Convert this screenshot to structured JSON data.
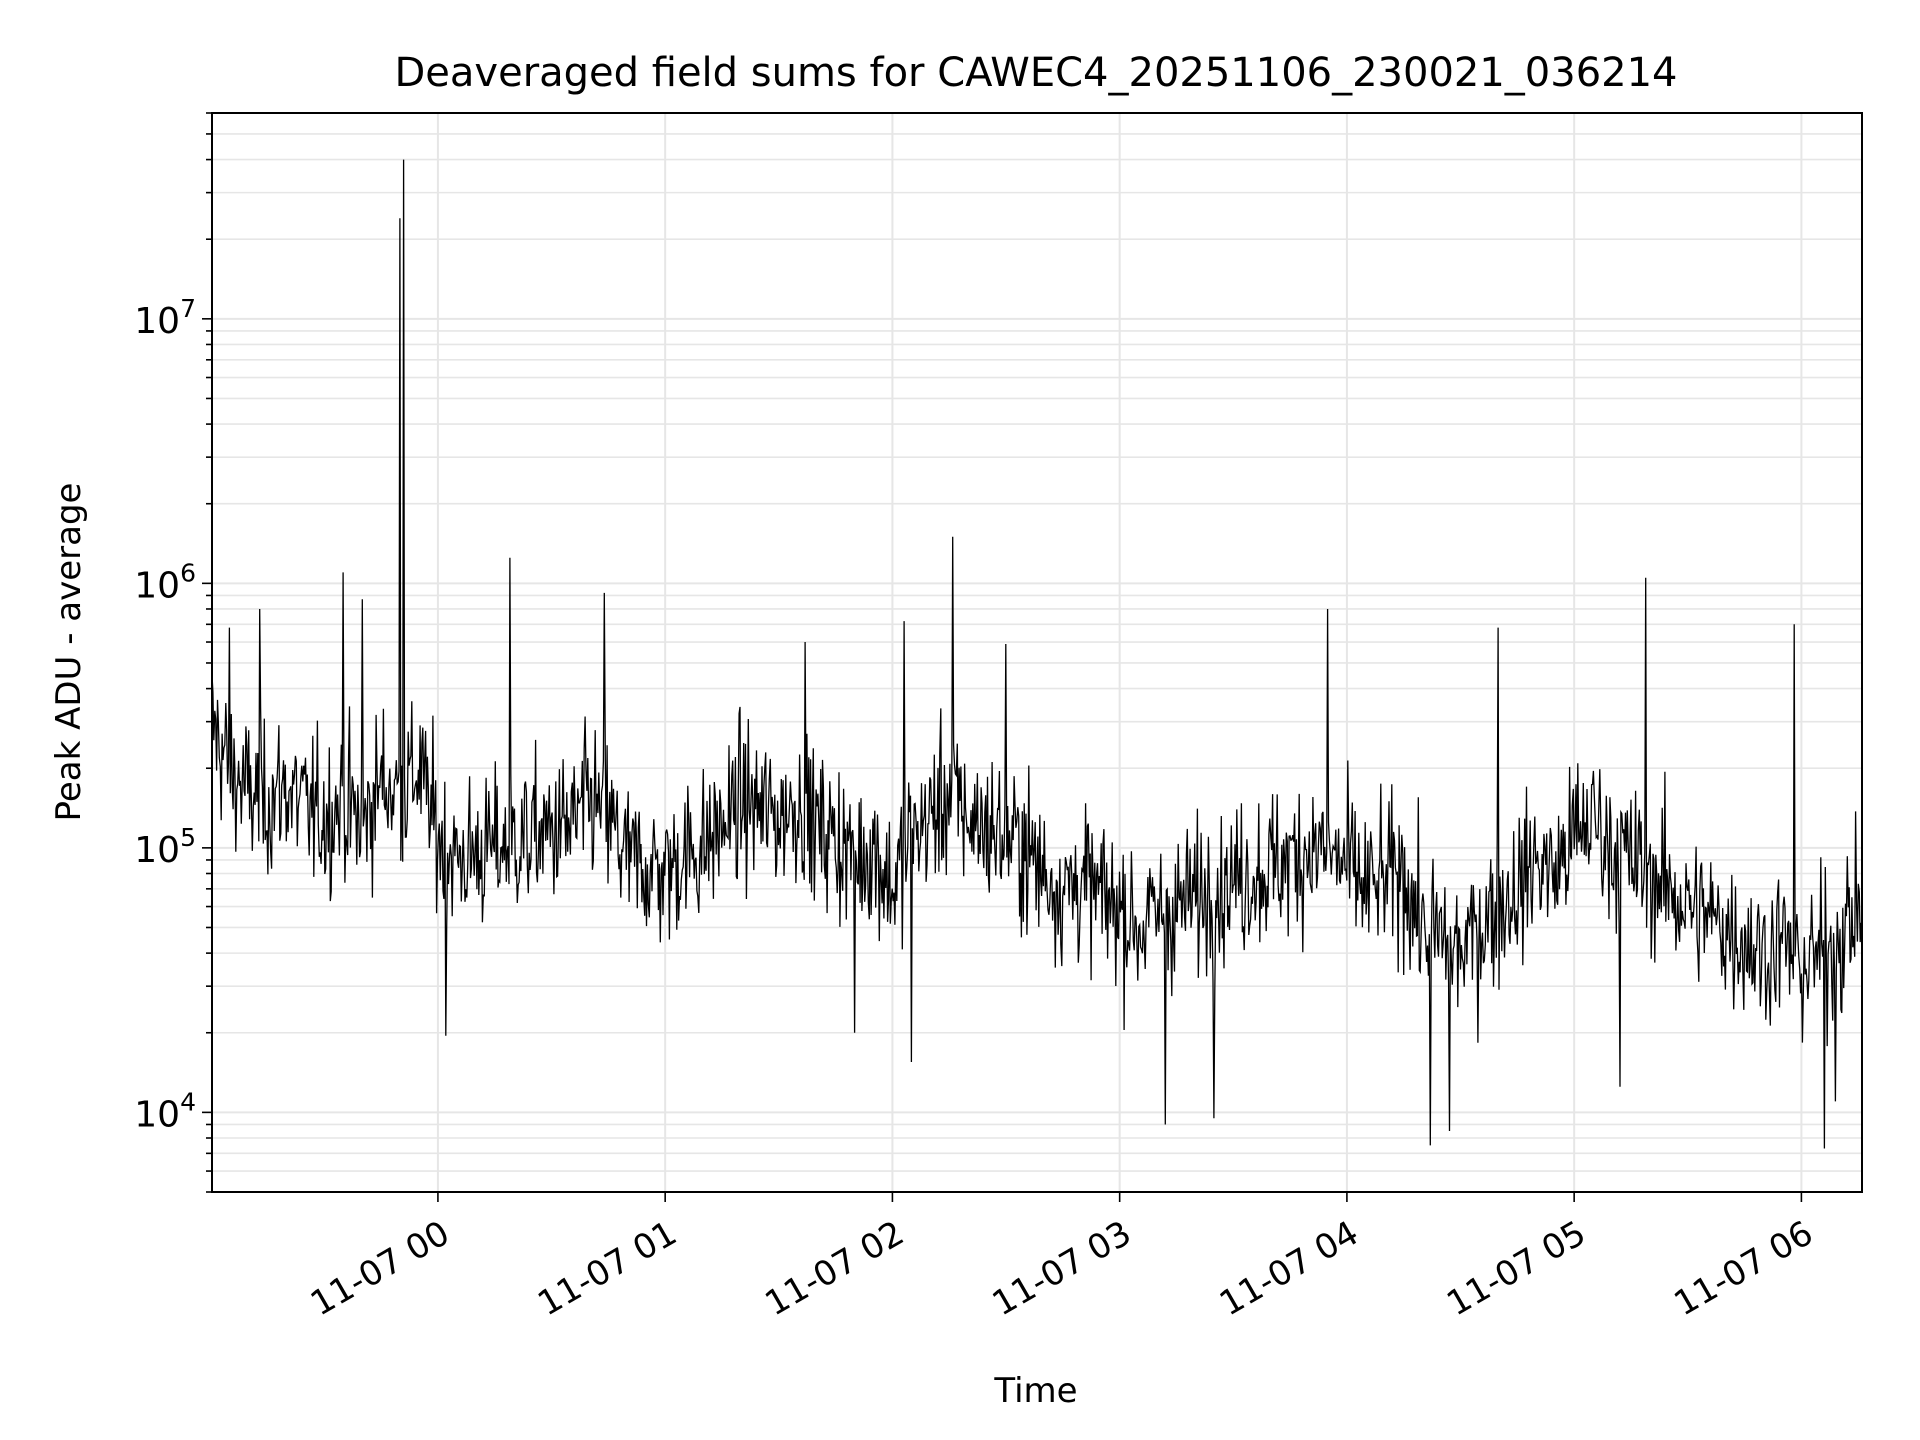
{
  "chart_data": {
    "type": "line",
    "title": "Deaveraged field sums for CAWEC4_20251106_230021_036214",
    "xlabel": "Time",
    "ylabel": "Peak ADU - average",
    "yscale": "log",
    "grid": true,
    "line_color": "#000000",
    "grid_color": "#e6e6e6",
    "xlim": [
      "2025-11-06 23:00:21",
      "2025-11-07 06:16:00"
    ],
    "ylim": [
      5000,
      60000000
    ],
    "x_ticks": [
      {
        "t": "2025-11-07 00:00",
        "label": "11-07 00"
      },
      {
        "t": "2025-11-07 01:00",
        "label": "11-07 01"
      },
      {
        "t": "2025-11-07 02:00",
        "label": "11-07 02"
      },
      {
        "t": "2025-11-07 03:00",
        "label": "11-07 03"
      },
      {
        "t": "2025-11-07 04:00",
        "label": "11-07 04"
      },
      {
        "t": "2025-11-07 05:00",
        "label": "11-07 05"
      },
      {
        "t": "2025-11-07 06:00",
        "label": "11-07 06"
      }
    ],
    "y_ticks": [
      {
        "value": 10000,
        "base": "10",
        "exp": "4"
      },
      {
        "value": 100000,
        "base": "10",
        "exp": "5"
      },
      {
        "value": 1000000,
        "base": "10",
        "exp": "6"
      },
      {
        "value": 10000000,
        "base": "10",
        "exp": "7"
      }
    ],
    "series": [
      {
        "x": [
          "2025-11-06 23:00",
          "2025-11-06 23:05",
          "2025-11-06 23:10",
          "2025-11-06 23:15",
          "2025-11-06 23:20",
          "2025-11-06 23:25",
          "2025-11-06 23:30",
          "2025-11-06 23:35",
          "2025-11-06 23:40",
          "2025-11-06 23:45",
          "2025-11-06 23:50",
          "2025-11-06 23:55",
          "2025-11-07 00:00",
          "2025-11-07 00:05",
          "2025-11-07 00:10",
          "2025-11-07 00:15",
          "2025-11-07 00:20",
          "2025-11-07 00:25",
          "2025-11-07 00:30",
          "2025-11-07 00:35",
          "2025-11-07 00:40",
          "2025-11-07 00:45",
          "2025-11-07 00:50",
          "2025-11-07 00:55",
          "2025-11-07 01:00",
          "2025-11-07 01:05",
          "2025-11-07 01:10",
          "2025-11-07 01:15",
          "2025-11-07 01:20",
          "2025-11-07 01:25",
          "2025-11-07 01:30",
          "2025-11-07 01:35",
          "2025-11-07 01:40",
          "2025-11-07 01:45",
          "2025-11-07 01:50",
          "2025-11-07 01:55",
          "2025-11-07 02:00",
          "2025-11-07 02:05",
          "2025-11-07 02:10",
          "2025-11-07 02:15",
          "2025-11-07 02:20",
          "2025-11-07 02:25",
          "2025-11-07 02:30",
          "2025-11-07 02:35",
          "2025-11-07 02:40",
          "2025-11-07 02:45",
          "2025-11-07 02:50",
          "2025-11-07 02:55",
          "2025-11-07 03:00",
          "2025-11-07 03:05",
          "2025-11-07 03:10",
          "2025-11-07 03:15",
          "2025-11-07 03:20",
          "2025-11-07 03:25",
          "2025-11-07 03:30",
          "2025-11-07 03:35",
          "2025-11-07 03:40",
          "2025-11-07 03:45",
          "2025-11-07 03:50",
          "2025-11-07 03:55",
          "2025-11-07 04:00",
          "2025-11-07 04:05",
          "2025-11-07 04:10",
          "2025-11-07 04:15",
          "2025-11-07 04:20",
          "2025-11-07 04:25",
          "2025-11-07 04:30",
          "2025-11-07 04:35",
          "2025-11-07 04:40",
          "2025-11-07 04:45",
          "2025-11-07 04:50",
          "2025-11-07 04:55",
          "2025-11-07 05:00",
          "2025-11-07 05:05",
          "2025-11-07 05:10",
          "2025-11-07 05:15",
          "2025-11-07 05:20",
          "2025-11-07 05:25",
          "2025-11-07 05:30",
          "2025-11-07 05:35",
          "2025-11-07 05:40",
          "2025-11-07 05:45",
          "2025-11-07 05:50",
          "2025-11-07 05:55",
          "2025-11-07 06:00",
          "2025-11-07 06:05",
          "2025-11-07 06:10",
          "2025-11-07 06:15"
        ],
        "y": [
          300000,
          200000,
          160000,
          150000,
          170000,
          140000,
          130000,
          150000,
          120000,
          180000,
          160000,
          200000,
          110000,
          90000,
          95000,
          100000,
          105000,
          110000,
          115000,
          120000,
          150000,
          130000,
          90000,
          85000,
          80000,
          95000,
          100000,
          120000,
          150000,
          140000,
          130000,
          150000,
          120000,
          110000,
          90000,
          100000,
          70000,
          110000,
          130000,
          160000,
          130000,
          120000,
          110000,
          100000,
          80000,
          70000,
          75000,
          65000,
          60000,
          50000,
          55000,
          60000,
          65000,
          70000,
          75000,
          80000,
          85000,
          90000,
          100000,
          95000,
          85000,
          70000,
          75000,
          80000,
          50000,
          45000,
          40000,
          50000,
          60000,
          70000,
          90000,
          80000,
          110000,
          130000,
          100000,
          90000,
          80000,
          70000,
          60000,
          55000,
          50000,
          45000,
          40000,
          45000,
          35000,
          40000,
          45000,
          60000
        ],
        "peaks": [
          {
            "t": "2025-11-06 23:51",
            "value": 40000000
          },
          {
            "t": "2025-11-06 23:50",
            "value": 24000000
          },
          {
            "t": "2025-11-07 02:16",
            "value": 1500000
          },
          {
            "t": "2025-11-07 00:19",
            "value": 1250000
          },
          {
            "t": "2025-11-06 23:35",
            "value": 1100000
          },
          {
            "t": "2025-11-07 05:19",
            "value": 1050000
          },
          {
            "t": "2025-11-06 23:40",
            "value": 870000
          },
          {
            "t": "2025-11-07 00:44",
            "value": 920000
          },
          {
            "t": "2025-11-07 03:55",
            "value": 800000
          },
          {
            "t": "2025-11-07 02:03",
            "value": 720000
          },
          {
            "t": "2025-11-07 04:40",
            "value": 680000
          },
          {
            "t": "2025-11-07 05:58",
            "value": 700000
          },
          {
            "t": "2025-11-07 02:30",
            "value": 590000
          },
          {
            "t": "2025-11-07 01:37",
            "value": 600000
          },
          {
            "t": "2025-11-06 23:05",
            "value": 680000
          },
          {
            "t": "2025-11-06 23:13",
            "value": 800000
          }
        ],
        "troughs": [
          {
            "t": "2025-11-07 04:22",
            "value": 7500
          },
          {
            "t": "2025-11-07 06:06",
            "value": 7300
          },
          {
            "t": "2025-11-07 03:12",
            "value": 9000
          },
          {
            "t": "2025-11-07 03:25",
            "value": 9500
          },
          {
            "t": "2025-11-07 04:27",
            "value": 8500
          },
          {
            "t": "2025-11-07 00:02",
            "value": 19500
          },
          {
            "t": "2025-11-07 01:50",
            "value": 20000
          },
          {
            "t": "2025-11-07 02:05",
            "value": 15500
          },
          {
            "t": "2025-11-07 05:12",
            "value": 12500
          },
          {
            "t": "2025-11-07 06:09",
            "value": 11000
          }
        ]
      }
    ]
  }
}
